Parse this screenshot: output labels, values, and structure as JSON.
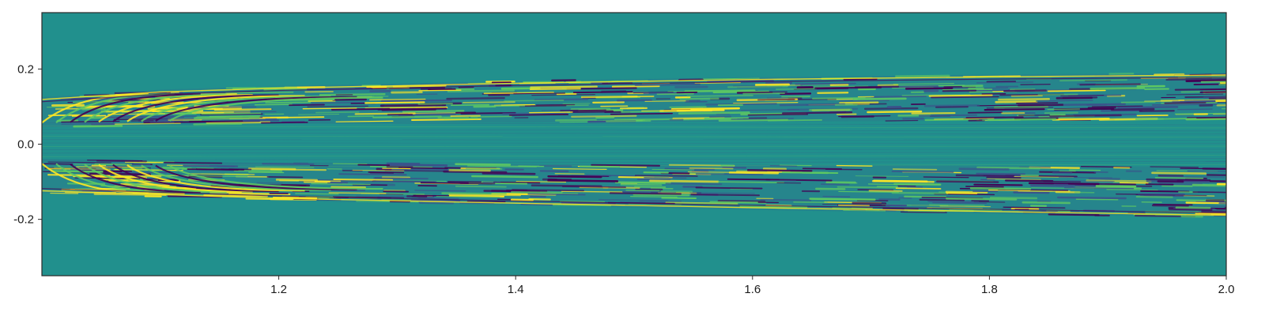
{
  "chart_data": {
    "type": "heatmap",
    "title": "",
    "xlabel": "",
    "ylabel": "",
    "xlim": [
      1.0,
      2.0
    ],
    "ylim": [
      -0.35,
      0.35
    ],
    "x_ticks": [
      {
        "value": 1.2,
        "label": "1.2"
      },
      {
        "value": 1.4,
        "label": "1.4"
      },
      {
        "value": 1.6,
        "label": "1.6"
      },
      {
        "value": 1.8,
        "label": "1.8"
      },
      {
        "value": 2.0,
        "label": "2.0"
      }
    ],
    "y_ticks": [
      {
        "value": 0.2,
        "label": "0.2"
      },
      {
        "value": 0.0,
        "label": "0.0"
      },
      {
        "value": -0.2,
        "label": "-0.2"
      }
    ],
    "colormap": "viridis",
    "background_color": "#21908d",
    "colors": [
      "#440154",
      "#3b528b",
      "#21908d",
      "#5ec962",
      "#fde725"
    ],
    "grid": false,
    "legend": "none",
    "upper_band": {
      "outer_edge": [
        [
          1.0,
          0.125
        ],
        [
          1.1,
          0.145
        ],
        [
          1.2,
          0.155
        ],
        [
          1.4,
          0.168
        ],
        [
          1.6,
          0.178
        ],
        [
          1.8,
          0.185
        ],
        [
          2.0,
          0.19
        ]
      ],
      "inner_edge": [
        [
          1.0,
          0.045
        ],
        [
          1.2,
          0.055
        ],
        [
          1.6,
          0.06
        ],
        [
          2.0,
          0.065
        ]
      ]
    },
    "lower_band": {
      "inner_edge": [
        [
          1.0,
          -0.04
        ],
        [
          1.2,
          -0.05
        ],
        [
          1.6,
          -0.055
        ],
        [
          2.0,
          -0.06
        ]
      ],
      "outer_edge": [
        [
          1.0,
          -0.13
        ],
        [
          1.1,
          -0.14
        ],
        [
          1.2,
          -0.15
        ],
        [
          1.4,
          -0.163
        ],
        [
          1.6,
          -0.175
        ],
        [
          1.8,
          -0.185
        ],
        [
          2.0,
          -0.195
        ]
      ]
    }
  }
}
